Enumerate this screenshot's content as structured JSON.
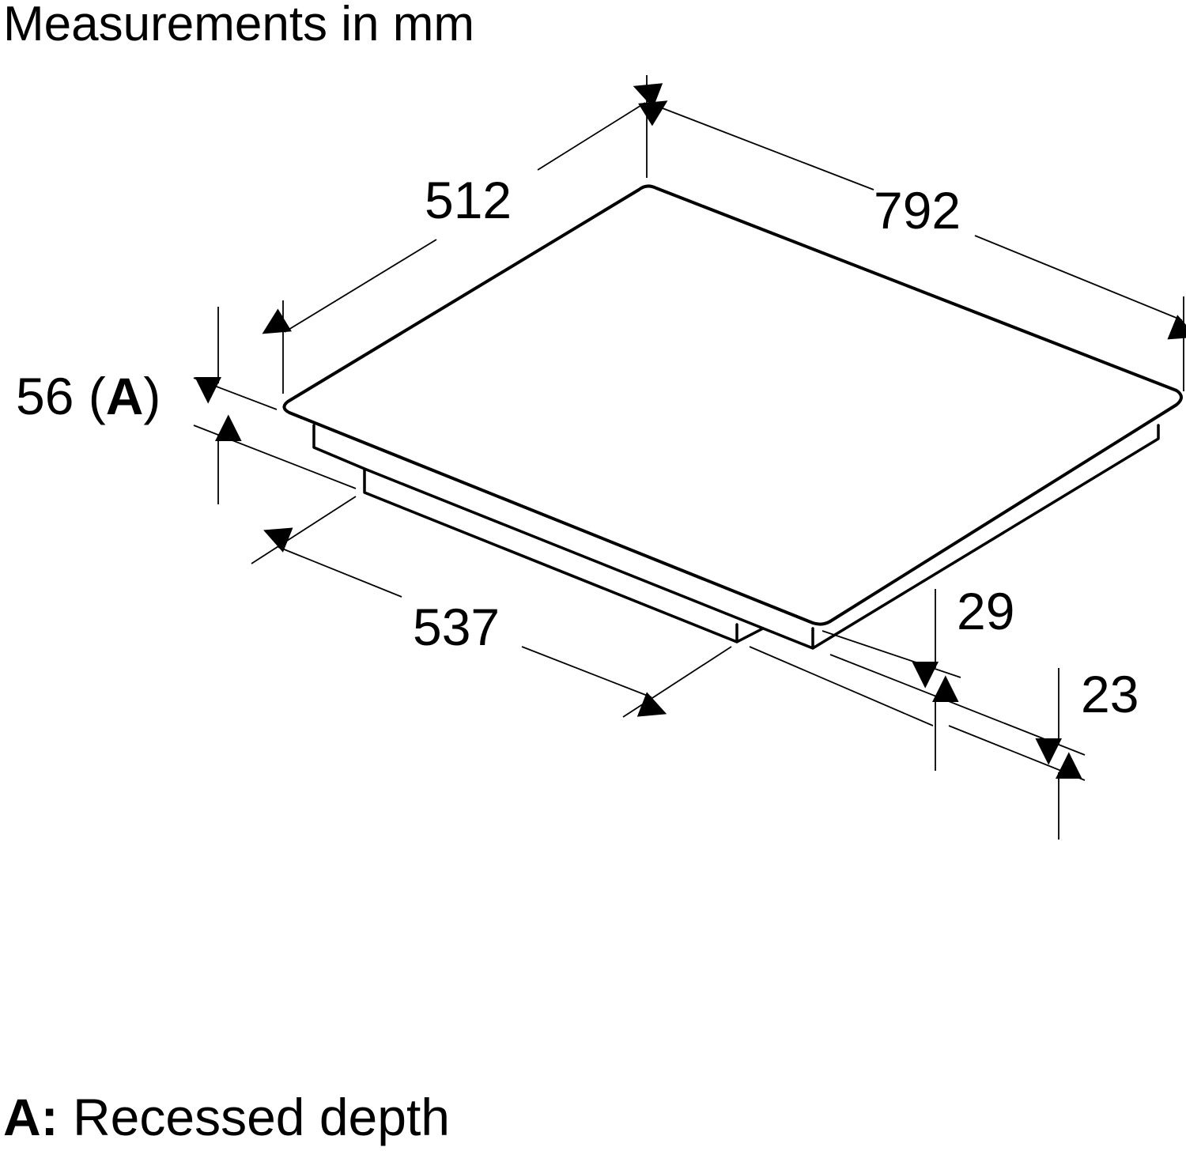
{
  "title": "Measurements in mm",
  "dimensions": {
    "depth_top": "512",
    "width_top": "792",
    "recessed_depth": "56",
    "recessed_marker": "A",
    "cutout_width": "537",
    "body_height": "29",
    "lower_height": "23"
  },
  "legend": {
    "key": "A:",
    "text": "Recessed depth"
  }
}
